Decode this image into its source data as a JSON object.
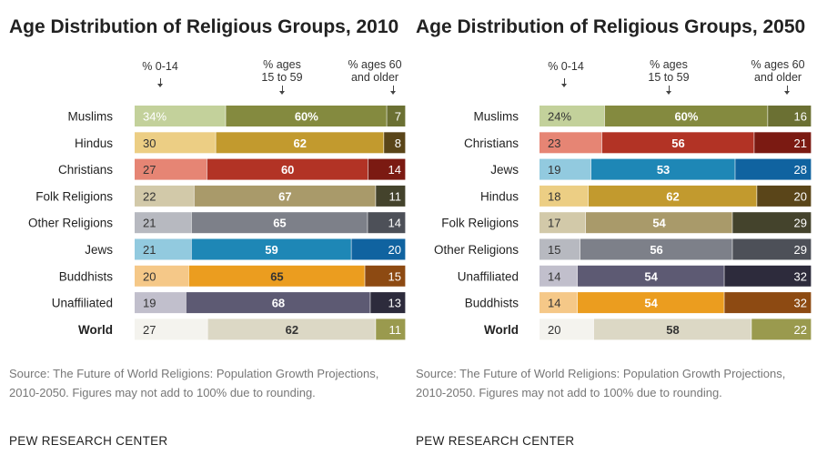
{
  "chart_data": [
    {
      "type": "bar",
      "stacked": true,
      "orientation": "horizontal",
      "title": "Age Distribution of Religious Groups, 2010",
      "column_headers": [
        "% 0-14",
        "% ages 15 to 59",
        "% ages 60 and older"
      ],
      "categories": [
        "Muslims",
        "Hindus",
        "Christians",
        "Folk Religions",
        "Other Religions",
        "Jews",
        "Buddhists",
        "Unaffiliated",
        "World"
      ],
      "series": [
        {
          "name": "% 0-14",
          "values": [
            34,
            30,
            27,
            22,
            21,
            21,
            20,
            19,
            27
          ],
          "labels": [
            "34%",
            "30",
            "27",
            "22",
            "21",
            "21",
            "20",
            "19",
            "27"
          ]
        },
        {
          "name": "% ages 15 to 59",
          "values": [
            60,
            62,
            60,
            67,
            65,
            59,
            65,
            68,
            62
          ],
          "labels": [
            "60%",
            "62",
            "60",
            "67",
            "65",
            "59",
            "65",
            "68",
            "62"
          ]
        },
        {
          "name": "% ages 60 and older",
          "values": [
            7,
            8,
            14,
            11,
            14,
            20,
            15,
            13,
            11
          ],
          "labels": [
            "7",
            "8",
            "14",
            "11",
            "14",
            "20",
            "15",
            "13",
            "11"
          ]
        }
      ],
      "colors": [
        [
          "#c3d19b",
          "#848a3f",
          "#6b7033"
        ],
        [
          "#ecce84",
          "#c29a2e",
          "#5a4519"
        ],
        [
          "#e68574",
          "#b23325",
          "#7b1a12"
        ],
        [
          "#d2c9a9",
          "#a99a6a",
          "#44432c"
        ],
        [
          "#b7b9c0",
          "#7d8089",
          "#4d5058"
        ],
        [
          "#92cadf",
          "#1e87b6",
          "#1063a0"
        ],
        [
          "#f5c888",
          "#eb9d1f",
          "#8d4a12"
        ],
        [
          "#c1bfcc",
          "#5d5a73",
          "#2d2b3c"
        ],
        [
          "#f4f3ee",
          "#dcd8c5",
          "#9a9a4e"
        ]
      ],
      "label_colors": [
        [
          "#ffffff",
          "#ffffff",
          "#ffffff"
        ],
        [
          "#333333",
          "#ffffff",
          "#ffffff"
        ],
        [
          "#333333",
          "#ffffff",
          "#ffffff"
        ],
        [
          "#333333",
          "#ffffff",
          "#ffffff"
        ],
        [
          "#333333",
          "#ffffff",
          "#ffffff"
        ],
        [
          "#333333",
          "#ffffff",
          "#ffffff"
        ],
        [
          "#333333",
          "#333333",
          "#ffffff"
        ],
        [
          "#333333",
          "#ffffff",
          "#ffffff"
        ],
        [
          "#333333",
          "#333333",
          "#ffffff"
        ]
      ]
    },
    {
      "type": "bar",
      "stacked": true,
      "orientation": "horizontal",
      "title": "Age Distribution of Religious Groups, 2050",
      "column_headers": [
        "% 0-14",
        "% ages 15 to 59",
        "% ages 60 and older"
      ],
      "categories": [
        "Muslims",
        "Christians",
        "Jews",
        "Hindus",
        "Folk Religions",
        "Other Religions",
        "Unaffiliated",
        "Buddhists",
        "World"
      ],
      "series": [
        {
          "name": "% 0-14",
          "values": [
            24,
            23,
            19,
            18,
            17,
            15,
            14,
            14,
            20
          ],
          "labels": [
            "24%",
            "23",
            "19",
            "18",
            "17",
            "15",
            "14",
            "14",
            "20"
          ]
        },
        {
          "name": "% ages 15 to 59",
          "values": [
            60,
            56,
            53,
            62,
            54,
            56,
            54,
            54,
            58
          ],
          "labels": [
            "60%",
            "56",
            "53",
            "62",
            "54",
            "56",
            "54",
            "54",
            "58"
          ]
        },
        {
          "name": "% ages 60 and older",
          "values": [
            16,
            21,
            28,
            20,
            29,
            29,
            32,
            32,
            22
          ],
          "labels": [
            "16",
            "21",
            "28",
            "20",
            "29",
            "29",
            "32",
            "32",
            "22"
          ]
        }
      ],
      "colors": [
        [
          "#c3d19b",
          "#848a3f",
          "#6b7033"
        ],
        [
          "#e68574",
          "#b23325",
          "#7b1a12"
        ],
        [
          "#92cadf",
          "#1e87b6",
          "#1063a0"
        ],
        [
          "#ecce84",
          "#c29a2e",
          "#5a4519"
        ],
        [
          "#d2c9a9",
          "#a99a6a",
          "#44432c"
        ],
        [
          "#b7b9c0",
          "#7d8089",
          "#4d5058"
        ],
        [
          "#c1bfcc",
          "#5d5a73",
          "#2d2b3c"
        ],
        [
          "#f5c888",
          "#eb9d1f",
          "#8d4a12"
        ],
        [
          "#f4f3ee",
          "#dcd8c5",
          "#9a9a4e"
        ]
      ],
      "label_colors": [
        [
          "#333333",
          "#ffffff",
          "#ffffff"
        ],
        [
          "#333333",
          "#ffffff",
          "#ffffff"
        ],
        [
          "#333333",
          "#ffffff",
          "#ffffff"
        ],
        [
          "#333333",
          "#ffffff",
          "#ffffff"
        ],
        [
          "#333333",
          "#ffffff",
          "#ffffff"
        ],
        [
          "#333333",
          "#ffffff",
          "#ffffff"
        ],
        [
          "#333333",
          "#ffffff",
          "#ffffff"
        ],
        [
          "#333333",
          "#ffffff",
          "#ffffff"
        ],
        [
          "#333333",
          "#333333",
          "#ffffff"
        ]
      ]
    }
  ],
  "left": {
    "title": "Age Distribution of Religious Groups, 2010",
    "head_0_14": "% 0-14",
    "head_15_line1": "% ages",
    "head_15_line2": "15 to 59",
    "head_60_line1": "% ages 60",
    "head_60_line2": "and older",
    "source": "Source: The Future of World Religions: Population Growth Projections, 2010-2050. Figures may not add to 100% due to rounding.",
    "brand": "PEW RESEARCH CENTER"
  },
  "right": {
    "title": "Age Distribution of Religious Groups, 2050",
    "head_0_14": "% 0-14",
    "head_15_line1": "% ages",
    "head_15_line2": "15 to 59",
    "head_60_line1": "% ages 60",
    "head_60_line2": "and older",
    "source": "Source: The Future of World Religions: Population Growth Projections, 2010-2050. Figures may not add to 100% due to rounding.",
    "brand": "PEW RESEARCH CENTER"
  }
}
